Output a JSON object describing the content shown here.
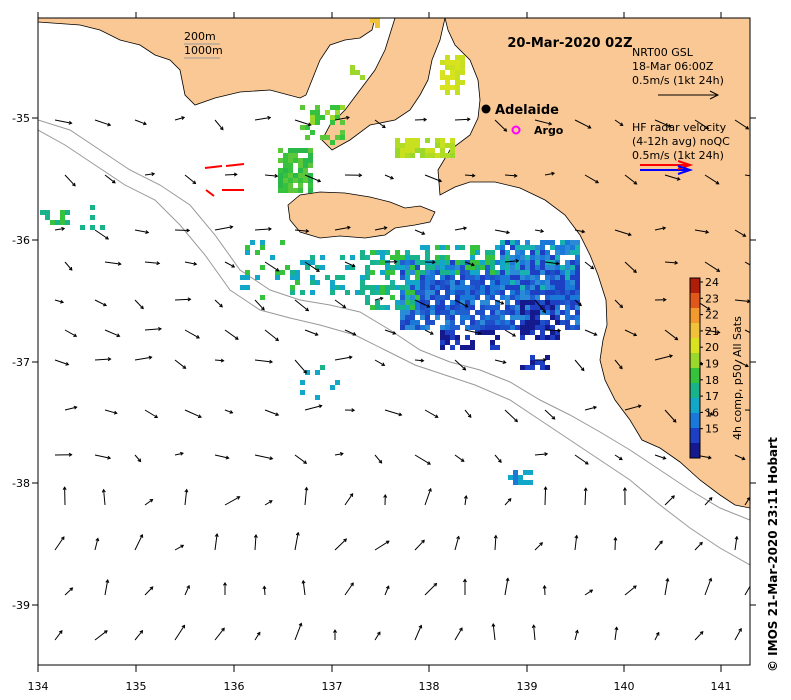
{
  "title": "20-Mar-2020 02Z",
  "credit": "© IMOS 21-Mar-2020 23:11 Hobart",
  "places": {
    "adelaide": "Adelaide",
    "argo": "Argo"
  },
  "depth_legend": {
    "line1": "200m",
    "line2": "1000m"
  },
  "gsl_legend": {
    "line1": "NRT00 GSL",
    "line2": "18-Mar 06:00Z",
    "line3": "0.5m/s (1kt 24h)"
  },
  "radar_legend": {
    "line1": "HF radar velocity",
    "line2": "(4-12h avg) noQC",
    "line3": "0.5m/s (1kt 24h)"
  },
  "colorbar": {
    "label": "4h comp, p50, All Sats",
    "ticks": [
      "24",
      "23",
      "22",
      "21",
      "20",
      "19",
      "18",
      "17",
      "16",
      "15"
    ],
    "colors": [
      "#b01e0a",
      "#e0571c",
      "#f29a2e",
      "#f0c23a",
      "#d8e21e",
      "#9ad82c",
      "#36c23c",
      "#18b38a",
      "#12a6c8",
      "#1a78d8",
      "#1c3fc4",
      "#141a8e"
    ]
  },
  "axes": {
    "x_ticks": [
      "134",
      "135",
      "136",
      "137",
      "138",
      "139",
      "140",
      "141"
    ],
    "y_ticks": [
      "-35",
      "-36",
      "-37",
      "-38",
      "-39"
    ]
  },
  "colors": {
    "land": "#fac894",
    "arrow": "#000000",
    "radar_red": "#ff0000",
    "radar_blue": "#0000ff",
    "argo": "#ff00ff"
  }
}
